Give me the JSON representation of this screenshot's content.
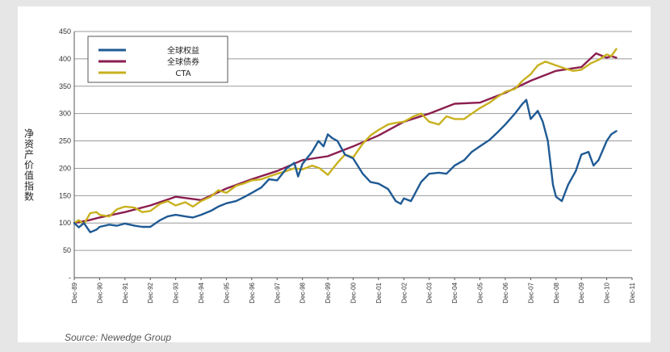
{
  "chart_data": {
    "type": "line",
    "title": "",
    "xlabel": "",
    "ylabel": "净资产价值指数",
    "ylim": [
      0,
      450
    ],
    "y_ticks": [
      {
        "value": 0,
        "label": "-"
      },
      {
        "value": 50,
        "label": "50"
      },
      {
        "value": 100,
        "label": "100"
      },
      {
        "value": 150,
        "label": "150"
      },
      {
        "value": 200,
        "label": "200"
      },
      {
        "value": 250,
        "label": "250"
      },
      {
        "value": 300,
        "label": "300"
      },
      {
        "value": 350,
        "label": "350"
      },
      {
        "value": 400,
        "label": "400"
      },
      {
        "value": 450,
        "label": "450"
      }
    ],
    "xlim": [
      1989.92,
      2011.92
    ],
    "x_ticks": [
      {
        "value": 1989.92,
        "label": "Dec-89"
      },
      {
        "value": 1990.92,
        "label": "Dec-90"
      },
      {
        "value": 1991.92,
        "label": "Dec-91"
      },
      {
        "value": 1992.92,
        "label": "Dec-92"
      },
      {
        "value": 1993.92,
        "label": "Dec-93"
      },
      {
        "value": 1994.92,
        "label": "Dec-94"
      },
      {
        "value": 1995.92,
        "label": "Dec-95"
      },
      {
        "value": 1996.92,
        "label": "Dec-96"
      },
      {
        "value": 1997.92,
        "label": "Dec-97"
      },
      {
        "value": 1998.92,
        "label": "Dec-98"
      },
      {
        "value": 1999.92,
        "label": "Dec-99"
      },
      {
        "value": 2000.92,
        "label": "Dec-00"
      },
      {
        "value": 2001.92,
        "label": "Dec-01"
      },
      {
        "value": 2002.92,
        "label": "Dec-02"
      },
      {
        "value": 2003.92,
        "label": "Dec-03"
      },
      {
        "value": 2004.92,
        "label": "Dec-04"
      },
      {
        "value": 2005.92,
        "label": "Dec-05"
      },
      {
        "value": 2006.92,
        "label": "Dec-06"
      },
      {
        "value": 2007.92,
        "label": "Dec-07"
      },
      {
        "value": 2008.92,
        "label": "Dec-08"
      },
      {
        "value": 2009.92,
        "label": "Dec-09"
      },
      {
        "value": 2010.92,
        "label": "Dec-10"
      },
      {
        "value": 2011.92,
        "label": "Dec-11"
      }
    ],
    "grid": "horizontal",
    "legend_position": "top-left",
    "series": [
      {
        "name": "全球权益",
        "color": "#1f5a94",
        "points": [
          [
            1989.92,
            100
          ],
          [
            1990.1,
            92
          ],
          [
            1990.3,
            100
          ],
          [
            1990.55,
            83
          ],
          [
            1990.8,
            88
          ],
          [
            1990.92,
            93
          ],
          [
            1991.3,
            97
          ],
          [
            1991.6,
            95
          ],
          [
            1991.92,
            99
          ],
          [
            1992.3,
            95
          ],
          [
            1992.6,
            93
          ],
          [
            1992.92,
            93
          ],
          [
            1993.3,
            105
          ],
          [
            1993.6,
            112
          ],
          [
            1993.92,
            115
          ],
          [
            1994.3,
            112
          ],
          [
            1994.6,
            110
          ],
          [
            1994.92,
            115
          ],
          [
            1995.3,
            122
          ],
          [
            1995.6,
            130
          ],
          [
            1995.92,
            136
          ],
          [
            1996.3,
            140
          ],
          [
            1996.6,
            147
          ],
          [
            1996.92,
            155
          ],
          [
            1997.3,
            165
          ],
          [
            1997.6,
            180
          ],
          [
            1997.92,
            178
          ],
          [
            1998.3,
            200
          ],
          [
            1998.6,
            210
          ],
          [
            1998.75,
            185
          ],
          [
            1998.92,
            208
          ],
          [
            1999.3,
            230
          ],
          [
            1999.55,
            250
          ],
          [
            1999.75,
            240
          ],
          [
            1999.92,
            262
          ],
          [
            2000.1,
            255
          ],
          [
            2000.3,
            250
          ],
          [
            2000.6,
            225
          ],
          [
            2000.92,
            218
          ],
          [
            2001.3,
            190
          ],
          [
            2001.6,
            175
          ],
          [
            2001.92,
            172
          ],
          [
            2002.3,
            162
          ],
          [
            2002.6,
            140
          ],
          [
            2002.8,
            135
          ],
          [
            2002.92,
            145
          ],
          [
            2003.2,
            140
          ],
          [
            2003.6,
            175
          ],
          [
            2003.92,
            190
          ],
          [
            2004.3,
            192
          ],
          [
            2004.6,
            190
          ],
          [
            2004.92,
            205
          ],
          [
            2005.3,
            215
          ],
          [
            2005.6,
            230
          ],
          [
            2005.92,
            240
          ],
          [
            2006.3,
            252
          ],
          [
            2006.6,
            265
          ],
          [
            2006.92,
            280
          ],
          [
            2007.3,
            300
          ],
          [
            2007.6,
            318
          ],
          [
            2007.75,
            325
          ],
          [
            2007.92,
            290
          ],
          [
            2008.2,
            305
          ],
          [
            2008.4,
            285
          ],
          [
            2008.6,
            250
          ],
          [
            2008.8,
            170
          ],
          [
            2008.92,
            148
          ],
          [
            2009.15,
            140
          ],
          [
            2009.4,
            170
          ],
          [
            2009.7,
            195
          ],
          [
            2009.92,
            225
          ],
          [
            2010.2,
            230
          ],
          [
            2010.4,
            205
          ],
          [
            2010.6,
            215
          ],
          [
            2010.92,
            250
          ],
          [
            2011.1,
            262
          ],
          [
            2011.3,
            268
          ]
        ]
      },
      {
        "name": "全球债券",
        "color": "#8b1e4f",
        "points": [
          [
            1989.92,
            100
          ],
          [
            1990.5,
            105
          ],
          [
            1990.92,
            110
          ],
          [
            1991.92,
            120
          ],
          [
            1992.92,
            132
          ],
          [
            1993.92,
            148
          ],
          [
            1994.92,
            142
          ],
          [
            1995.92,
            163
          ],
          [
            1996.92,
            180
          ],
          [
            1997.92,
            195
          ],
          [
            1998.92,
            215
          ],
          [
            1999.92,
            222
          ],
          [
            2000.92,
            240
          ],
          [
            2001.92,
            260
          ],
          [
            2002.92,
            285
          ],
          [
            2003.92,
            300
          ],
          [
            2004.92,
            318
          ],
          [
            2005.92,
            320
          ],
          [
            2006.92,
            338
          ],
          [
            2007.92,
            360
          ],
          [
            2008.92,
            378
          ],
          [
            2009.92,
            385
          ],
          [
            2010.5,
            410
          ],
          [
            2010.92,
            402
          ],
          [
            2011.1,
            405
          ],
          [
            2011.3,
            402
          ]
        ]
      },
      {
        "name": "CTA",
        "color": "#c8b11e",
        "points": [
          [
            1989.92,
            100
          ],
          [
            1990.1,
            105
          ],
          [
            1990.3,
            98
          ],
          [
            1990.55,
            118
          ],
          [
            1990.8,
            120
          ],
          [
            1990.92,
            115
          ],
          [
            1991.3,
            112
          ],
          [
            1991.6,
            125
          ],
          [
            1991.92,
            130
          ],
          [
            1992.3,
            128
          ],
          [
            1992.6,
            120
          ],
          [
            1992.92,
            122
          ],
          [
            1993.3,
            135
          ],
          [
            1993.6,
            140
          ],
          [
            1993.92,
            132
          ],
          [
            1994.3,
            138
          ],
          [
            1994.6,
            130
          ],
          [
            1994.92,
            140
          ],
          [
            1995.3,
            148
          ],
          [
            1995.6,
            160
          ],
          [
            1995.92,
            155
          ],
          [
            1996.3,
            168
          ],
          [
            1996.6,
            172
          ],
          [
            1996.92,
            178
          ],
          [
            1997.3,
            180
          ],
          [
            1997.6,
            185
          ],
          [
            1997.92,
            190
          ],
          [
            1998.3,
            195
          ],
          [
            1998.6,
            200
          ],
          [
            1998.92,
            198
          ],
          [
            1999.3,
            205
          ],
          [
            1999.6,
            200
          ],
          [
            1999.92,
            188
          ],
          [
            2000.3,
            210
          ],
          [
            2000.6,
            225
          ],
          [
            2000.92,
            220
          ],
          [
            2001.3,
            245
          ],
          [
            2001.6,
            260
          ],
          [
            2001.92,
            270
          ],
          [
            2002.3,
            280
          ],
          [
            2002.6,
            283
          ],
          [
            2002.92,
            285
          ],
          [
            2003.3,
            295
          ],
          [
            2003.6,
            300
          ],
          [
            2003.92,
            285
          ],
          [
            2004.3,
            280
          ],
          [
            2004.6,
            295
          ],
          [
            2004.92,
            290
          ],
          [
            2005.3,
            290
          ],
          [
            2005.6,
            300
          ],
          [
            2005.92,
            310
          ],
          [
            2006.3,
            320
          ],
          [
            2006.6,
            330
          ],
          [
            2006.92,
            340
          ],
          [
            2007.3,
            345
          ],
          [
            2007.6,
            360
          ],
          [
            2007.92,
            372
          ],
          [
            2008.2,
            388
          ],
          [
            2008.5,
            395
          ],
          [
            2008.92,
            388
          ],
          [
            2009.3,
            382
          ],
          [
            2009.6,
            378
          ],
          [
            2009.92,
            380
          ],
          [
            2010.3,
            392
          ],
          [
            2010.6,
            398
          ],
          [
            2010.92,
            408
          ],
          [
            2011.1,
            405
          ],
          [
            2011.3,
            418
          ]
        ]
      }
    ],
    "source": "Source: Newedge Group"
  }
}
